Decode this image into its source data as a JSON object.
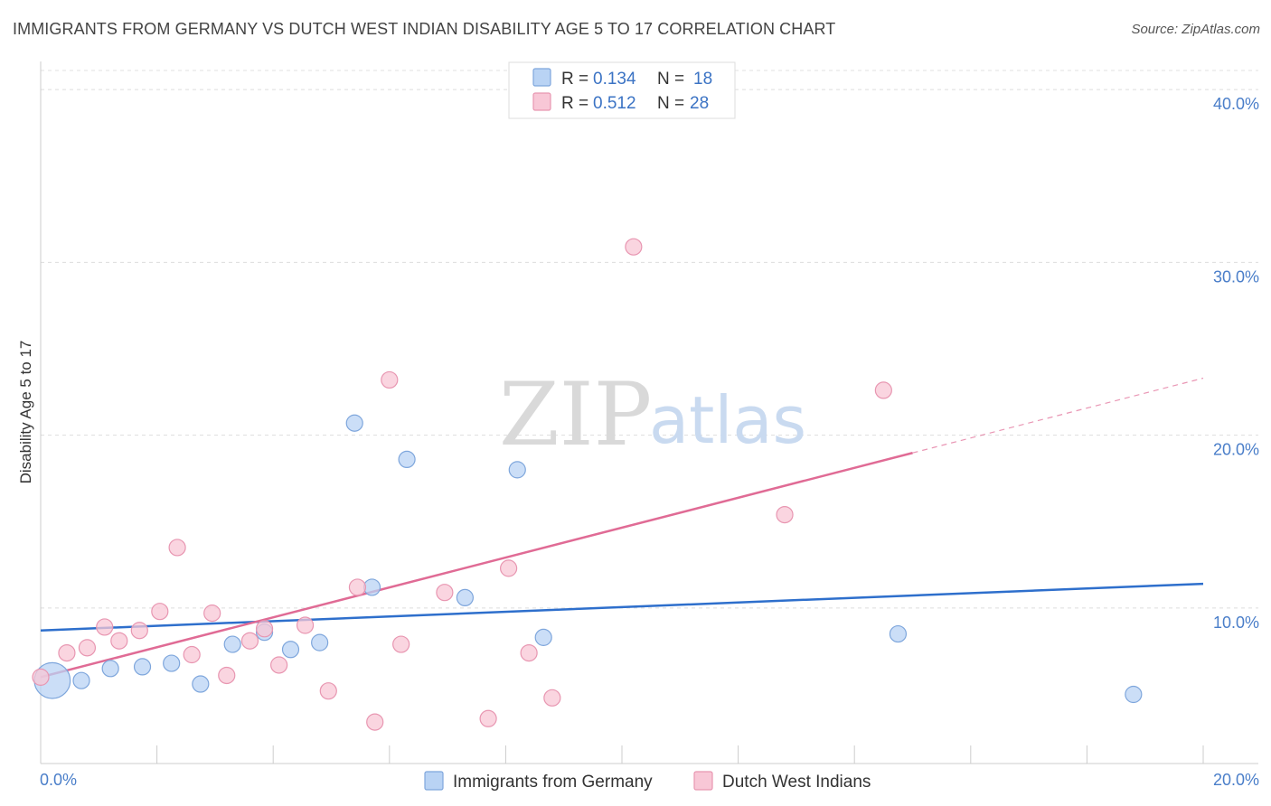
{
  "title": "IMMIGRANTS FROM GERMANY VS DUTCH WEST INDIAN DISABILITY AGE 5 TO 17 CORRELATION CHART",
  "source": "Source: ZipAtlas.com",
  "watermark": {
    "part1": "ZIP",
    "part2": "atlas"
  },
  "colors": {
    "series1_fill": "#b9d3f4",
    "series1_stroke": "#7ea6dc",
    "series1_line": "#2e6fcc",
    "series2_fill": "#f8c7d6",
    "series2_stroke": "#e896b1",
    "series2_line": "#e06b95",
    "tick": "#4a7ec9"
  },
  "legend": {
    "rows": [
      {
        "r_label": "R = ",
        "r_value": "0.134",
        "n_label": "N = ",
        "n_value": "18"
      },
      {
        "r_label": "R = ",
        "r_value": "0.512",
        "n_label": "N = ",
        "n_value": "28"
      }
    ]
  },
  "chart_data": {
    "type": "scatter",
    "title": "IMMIGRANTS FROM GERMANY VS DUTCH WEST INDIAN DISABILITY AGE 5 TO 17 CORRELATION CHART",
    "xlabel": "",
    "ylabel": "Disability Age 5 to 17",
    "xlim": [
      0,
      20
    ],
    "ylim": [
      1,
      41
    ],
    "x_ticks": [
      0,
      20
    ],
    "x_tick_labels": [
      "0.0%",
      "20.0%"
    ],
    "y_ticks": [
      10,
      20,
      30,
      40
    ],
    "y_tick_labels": [
      "10.0%",
      "20.0%",
      "30.0%",
      "40.0%"
    ],
    "grid": true,
    "legend_position": "top-center",
    "series": [
      {
        "name": "Immigrants from Germany",
        "points": [
          [
            0.2,
            5.8,
            2.2
          ],
          [
            0.7,
            5.8,
            1
          ],
          [
            1.2,
            6.5,
            1
          ],
          [
            1.75,
            6.6,
            1
          ],
          [
            2.25,
            6.8,
            1
          ],
          [
            2.75,
            5.6,
            1
          ],
          [
            3.3,
            7.9,
            1
          ],
          [
            3.85,
            8.6,
            1
          ],
          [
            4.3,
            7.6,
            1
          ],
          [
            4.8,
            8.0,
            1
          ],
          [
            5.4,
            20.7,
            1
          ],
          [
            5.7,
            11.2,
            1
          ],
          [
            6.3,
            18.6,
            1
          ],
          [
            7.3,
            10.6,
            1
          ],
          [
            8.2,
            18.0,
            1
          ],
          [
            8.65,
            8.3,
            1
          ],
          [
            14.75,
            8.5,
            1
          ],
          [
            18.8,
            5.0,
            1
          ]
        ],
        "trend": {
          "x0": 0,
          "y0": 8.7,
          "x1": 20,
          "y1": 11.4,
          "solid_until": 20
        }
      },
      {
        "name": "Dutch West Indians",
        "points": [
          [
            0.0,
            6.0,
            1
          ],
          [
            0.45,
            7.4,
            1
          ],
          [
            0.8,
            7.7,
            1
          ],
          [
            1.1,
            8.9,
            1
          ],
          [
            1.35,
            8.1,
            1
          ],
          [
            1.7,
            8.7,
            1
          ],
          [
            2.05,
            9.8,
            1
          ],
          [
            2.35,
            13.5,
            1
          ],
          [
            2.6,
            7.3,
            1
          ],
          [
            2.95,
            9.7,
            1
          ],
          [
            3.2,
            6.1,
            1
          ],
          [
            3.6,
            8.1,
            1
          ],
          [
            3.85,
            8.8,
            1
          ],
          [
            4.1,
            6.7,
            1
          ],
          [
            4.55,
            9.0,
            1
          ],
          [
            4.95,
            5.2,
            1
          ],
          [
            5.45,
            11.2,
            1
          ],
          [
            5.75,
            3.4,
            1
          ],
          [
            6.0,
            23.2,
            1
          ],
          [
            6.2,
            7.9,
            1
          ],
          [
            6.95,
            10.9,
            1
          ],
          [
            7.7,
            3.6,
            1
          ],
          [
            8.05,
            12.3,
            1
          ],
          [
            8.4,
            7.4,
            1
          ],
          [
            8.8,
            4.8,
            1
          ],
          [
            10.2,
            30.9,
            1
          ],
          [
            12.8,
            15.4,
            1
          ],
          [
            14.5,
            22.6,
            1
          ]
        ],
        "trend": {
          "x0": 0,
          "y0": 6.0,
          "x1": 20,
          "y1": 23.3,
          "solid_until": 15.0
        }
      }
    ]
  }
}
